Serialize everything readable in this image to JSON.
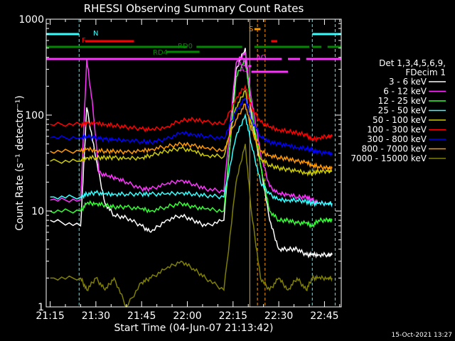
{
  "chart_data": {
    "type": "line",
    "title": "RHESSI Observing Summary Count Rates",
    "xlabel": "Start Time (04-Jun-07 21:13:42)",
    "ylabel": "Count Rate (s⁻¹ detector⁻¹)",
    "y_scale": "log",
    "ylim": [
      1,
      1000
    ],
    "xlim_minutes": [
      13.7,
      50.5
    ],
    "x_ticks": [
      {
        "m": 15,
        "label": "21:15"
      },
      {
        "m": 30,
        "label": "21:30"
      },
      {
        "m": 45,
        "label": "21:45"
      },
      {
        "m": 60,
        "label": "22:00"
      },
      {
        "m": 75,
        "label": "22:15"
      },
      {
        "m": 90,
        "label": "22:30"
      },
      {
        "m": 105,
        "label": "22:45"
      }
    ],
    "y_ticks": [
      {
        "v": 1,
        "label": "1"
      },
      {
        "v": 10,
        "label": "10"
      },
      {
        "v": 100,
        "label": "100"
      },
      {
        "v": 1000,
        "label": "1000"
      }
    ],
    "legend_title": [
      "Det 1,3,4,5,6,9,",
      "FDecim 1"
    ],
    "legend_position": "right",
    "series": [
      {
        "name": "3 - 6 keV",
        "color": "#ffffff",
        "points": [
          [
            15,
            8
          ],
          [
            25,
            7
          ],
          [
            27,
            120
          ],
          [
            30,
            35
          ],
          [
            33,
            12
          ],
          [
            36,
            9
          ],
          [
            40,
            8.5
          ],
          [
            45,
            7
          ],
          [
            48,
            6
          ],
          [
            53,
            8
          ],
          [
            58,
            9
          ],
          [
            62,
            8
          ],
          [
            66,
            7
          ],
          [
            72,
            8
          ],
          [
            76,
            300
          ],
          [
            79,
            500
          ],
          [
            81,
            100
          ],
          [
            84,
            30
          ],
          [
            87,
            8
          ],
          [
            90,
            4
          ],
          [
            93,
            4
          ],
          [
            96,
            4
          ],
          [
            99,
            3.5
          ],
          [
            101,
            3.5
          ],
          [
            103,
            3.5
          ],
          [
            106,
            3.5
          ],
          [
            107.5,
            3.5
          ]
        ]
      },
      {
        "name": "6 - 12 keV",
        "color": "#ff33ff",
        "points": [
          [
            15,
            13
          ],
          [
            25,
            13
          ],
          [
            27,
            380
          ],
          [
            29,
            120
          ],
          [
            31,
            25
          ],
          [
            34,
            23
          ],
          [
            37,
            22
          ],
          [
            40,
            20
          ],
          [
            45,
            17
          ],
          [
            48,
            17
          ],
          [
            53,
            19
          ],
          [
            58,
            21
          ],
          [
            62,
            19
          ],
          [
            66,
            17
          ],
          [
            72,
            16
          ],
          [
            76,
            350
          ],
          [
            79,
            450
          ],
          [
            81,
            150
          ],
          [
            84,
            40
          ],
          [
            87,
            18
          ],
          [
            90,
            15
          ],
          [
            93,
            15
          ],
          [
            96,
            14
          ],
          [
            99,
            14
          ],
          [
            101,
            13
          ],
          [
            103,
            12
          ],
          [
            106,
            12
          ],
          [
            107.5,
            12
          ]
        ]
      },
      {
        "name": "12 - 25 keV",
        "color": "#33ff33",
        "points": [
          [
            15,
            10
          ],
          [
            25,
            10
          ],
          [
            27,
            12
          ],
          [
            30,
            12
          ],
          [
            33,
            11.5
          ],
          [
            36,
            11
          ],
          [
            40,
            11
          ],
          [
            45,
            10.5
          ],
          [
            48,
            10
          ],
          [
            53,
            11
          ],
          [
            58,
            12
          ],
          [
            62,
            11
          ],
          [
            66,
            10.5
          ],
          [
            72,
            10
          ],
          [
            76,
            250
          ],
          [
            79,
            380
          ],
          [
            81,
            120
          ],
          [
            84,
            30
          ],
          [
            87,
            10
          ],
          [
            90,
            8
          ],
          [
            93,
            8
          ],
          [
            96,
            7.5
          ],
          [
            99,
            7.5
          ],
          [
            101,
            7
          ],
          [
            103,
            8
          ],
          [
            106,
            8
          ],
          [
            107.5,
            8
          ]
        ]
      },
      {
        "name": "25 - 50 keV",
        "color": "#33ffff",
        "points": [
          [
            15,
            14
          ],
          [
            25,
            14
          ],
          [
            27,
            15
          ],
          [
            30,
            15.5
          ],
          [
            33,
            15
          ],
          [
            36,
            15
          ],
          [
            40,
            15
          ],
          [
            45,
            15
          ],
          [
            48,
            15
          ],
          [
            53,
            15
          ],
          [
            58,
            15.5
          ],
          [
            62,
            15
          ],
          [
            66,
            14.5
          ],
          [
            72,
            14
          ],
          [
            76,
            60
          ],
          [
            79,
            100
          ],
          [
            81,
            50
          ],
          [
            84,
            20
          ],
          [
            87,
            15
          ],
          [
            90,
            13
          ],
          [
            93,
            13
          ],
          [
            96,
            13
          ],
          [
            99,
            12.5
          ],
          [
            101,
            12
          ],
          [
            103,
            12
          ],
          [
            106,
            12
          ],
          [
            107.5,
            12
          ]
        ]
      },
      {
        "name": "50 - 100 keV",
        "color": "#cccc00",
        "points": [
          [
            15,
            33
          ],
          [
            25,
            33
          ],
          [
            27,
            36
          ],
          [
            30,
            36
          ],
          [
            33,
            36
          ],
          [
            36,
            36
          ],
          [
            40,
            35
          ],
          [
            45,
            36
          ],
          [
            48,
            38
          ],
          [
            53,
            42
          ],
          [
            58,
            45
          ],
          [
            62,
            42
          ],
          [
            66,
            38
          ],
          [
            72,
            37
          ],
          [
            76,
            120
          ],
          [
            79,
            180
          ],
          [
            81,
            80
          ],
          [
            84,
            35
          ],
          [
            87,
            30
          ],
          [
            90,
            28
          ],
          [
            93,
            27
          ],
          [
            96,
            26
          ],
          [
            99,
            25
          ],
          [
            101,
            25
          ],
          [
            103,
            26
          ],
          [
            106,
            26
          ],
          [
            107.5,
            26
          ]
        ]
      },
      {
        "name": "100 - 300 keV",
        "color": "#ff0000",
        "points": [
          [
            15,
            80
          ],
          [
            25,
            80
          ],
          [
            27,
            82
          ],
          [
            30,
            82
          ],
          [
            33,
            80
          ],
          [
            36,
            78
          ],
          [
            40,
            75
          ],
          [
            45,
            72
          ],
          [
            48,
            70
          ],
          [
            53,
            75
          ],
          [
            58,
            88
          ],
          [
            62,
            90
          ],
          [
            66,
            85
          ],
          [
            72,
            80
          ],
          [
            76,
            150
          ],
          [
            79,
            200
          ],
          [
            81,
            120
          ],
          [
            84,
            85
          ],
          [
            87,
            75
          ],
          [
            90,
            70
          ],
          [
            93,
            68
          ],
          [
            96,
            65
          ],
          [
            99,
            62
          ],
          [
            101,
            55
          ],
          [
            103,
            58
          ],
          [
            106,
            60
          ],
          [
            107.5,
            60
          ]
        ]
      },
      {
        "name": "300 - 800 keV",
        "color": "#0000ff",
        "points": [
          [
            15,
            58
          ],
          [
            25,
            58
          ],
          [
            27,
            60
          ],
          [
            30,
            58
          ],
          [
            33,
            56
          ],
          [
            36,
            55
          ],
          [
            40,
            55
          ],
          [
            45,
            53
          ],
          [
            48,
            52
          ],
          [
            53,
            56
          ],
          [
            58,
            65
          ],
          [
            62,
            63
          ],
          [
            66,
            60
          ],
          [
            72,
            57
          ],
          [
            76,
            110
          ],
          [
            79,
            150
          ],
          [
            81,
            90
          ],
          [
            84,
            60
          ],
          [
            87,
            52
          ],
          [
            90,
            50
          ],
          [
            93,
            48
          ],
          [
            96,
            46
          ],
          [
            99,
            45
          ],
          [
            101,
            43
          ],
          [
            103,
            41
          ],
          [
            106,
            40
          ],
          [
            107.5,
            40
          ]
        ]
      },
      {
        "name": "800 - 7000 keV",
        "color": "#ff9900",
        "points": [
          [
            15,
            42
          ],
          [
            25,
            42
          ],
          [
            27,
            44
          ],
          [
            30,
            43
          ],
          [
            33,
            42
          ],
          [
            36,
            42
          ],
          [
            40,
            41
          ],
          [
            45,
            42
          ],
          [
            48,
            44
          ],
          [
            53,
            47
          ],
          [
            58,
            50
          ],
          [
            62,
            48
          ],
          [
            66,
            45
          ],
          [
            72,
            43
          ],
          [
            76,
            90
          ],
          [
            79,
            130
          ],
          [
            81,
            70
          ],
          [
            84,
            42
          ],
          [
            87,
            38
          ],
          [
            90,
            36
          ],
          [
            93,
            35
          ],
          [
            96,
            33
          ],
          [
            99,
            32
          ],
          [
            101,
            30
          ],
          [
            103,
            29
          ],
          [
            106,
            28
          ],
          [
            107.5,
            28
          ]
        ]
      },
      {
        "name": "7000 - 15000 keV",
        "color": "#808000",
        "points": [
          [
            15,
            2
          ],
          [
            25,
            2
          ],
          [
            27,
            1.5
          ],
          [
            30,
            2
          ],
          [
            33,
            1.5
          ],
          [
            36,
            2
          ],
          [
            40,
            1
          ],
          [
            45,
            1.8
          ],
          [
            48,
            2
          ],
          [
            53,
            2.5
          ],
          [
            58,
            3
          ],
          [
            62,
            2.5
          ],
          [
            66,
            2
          ],
          [
            72,
            1.5
          ],
          [
            76,
            20
          ],
          [
            79,
            50
          ],
          [
            81,
            10
          ],
          [
            84,
            2
          ],
          [
            87,
            1.5
          ],
          [
            90,
            2
          ],
          [
            93,
            1.5
          ],
          [
            96,
            2
          ],
          [
            99,
            1.5
          ],
          [
            101,
            2
          ],
          [
            103,
            2
          ],
          [
            106,
            2
          ],
          [
            107.5,
            2
          ]
        ]
      }
    ],
    "flag_bars": [
      {
        "label": "N",
        "color": "#33ffff",
        "segments": [
          [
            13.7,
            24.5
          ],
          [
            101,
            50.5
          ]
        ]
      },
      {
        "label": "F",
        "color": "#ff0000",
        "segments": [
          [
            26.5,
            42.5
          ],
          [
            87.5,
            89.5
          ]
        ]
      },
      {
        "label": "RD0",
        "color": "#008800",
        "segments": [
          [
            13.7,
            60
          ],
          [
            63,
            78
          ],
          [
            82,
            100
          ],
          [
            101,
            104
          ],
          [
            106,
            50.5
          ]
        ]
      },
      {
        "label": "RD4",
        "color": "#008800",
        "segments": [
          [
            53,
            64
          ]
        ]
      },
      {
        "label": "S",
        "color": "#ff9900",
        "segments": [
          [
            82,
            84
          ]
        ]
      },
      {
        "label": "AO",
        "color": "#ff33ff",
        "segments": [
          [
            13.7,
            91
          ],
          [
            93,
            97
          ],
          [
            99,
            50.5
          ]
        ]
      },
      {
        "label": "A1",
        "color": "#ff33ff",
        "segments": [
          [
            80,
            81
          ]
        ]
      },
      {
        "label": "A3",
        "color": "#ff33ff",
        "segments": [
          [
            81,
            93
          ]
        ]
      }
    ],
    "footer_text": "15-Oct-2021 13:27"
  }
}
